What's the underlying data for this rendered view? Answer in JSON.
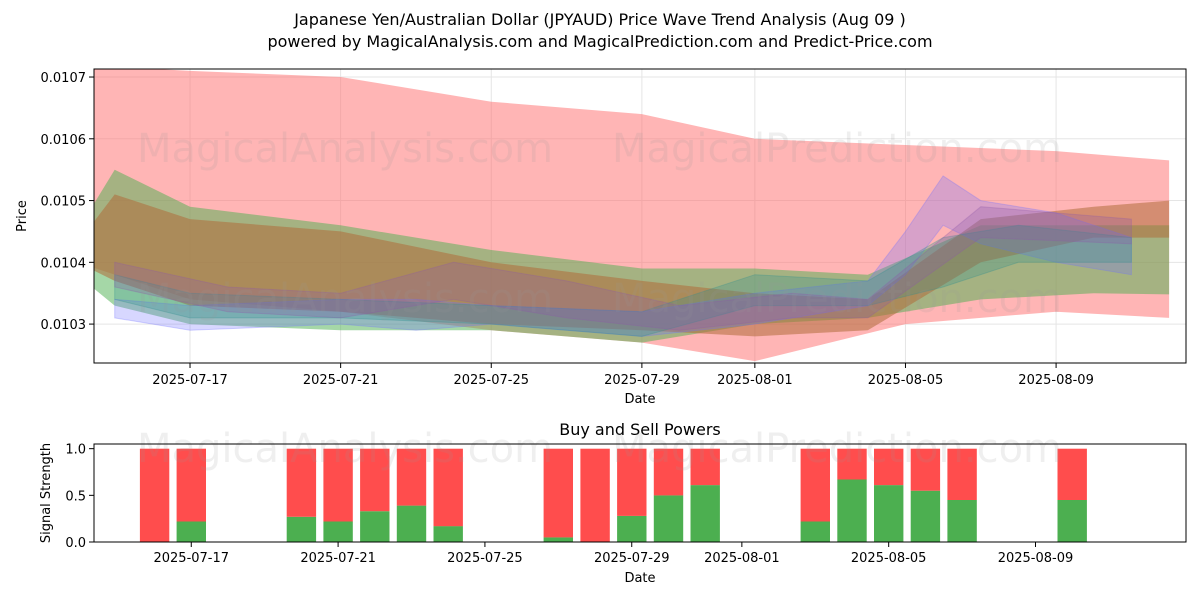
{
  "title_line1": "Japanese Yen/Australian Dollar (JPYAUD) Price Wave Trend Analysis (Aug 09 )",
  "title_line2": "powered by MagicalAnalysis.com and MagicalPrediction.com and Predict-Price.com",
  "watermark_1": "MagicalAnalysis.com",
  "watermark_2": "MagicalPrediction.com",
  "colors": {
    "red_band": "#ff6b6b",
    "green_band": "#4caf50",
    "brown_band": "#b06b3a",
    "blue_wave": "#6f6fff",
    "teal_wave": "#2f8f8f",
    "purple_wave": "#8e5aa8",
    "buy": "#4caf50",
    "sell": "#ff4d4d"
  },
  "chart_data": [
    {
      "type": "area",
      "xlabel": "Date",
      "ylabel": "Price",
      "x_ticks": [
        "2025-07-17",
        "2025-07-21",
        "2025-07-25",
        "2025-07-29",
        "2025-08-01",
        "2025-08-05",
        "2025-08-09"
      ],
      "y_ticks": [
        "0.0103",
        "0.0104",
        "0.0105",
        "0.0106",
        "0.0107"
      ],
      "xlim": [
        "2025-07-14",
        "2025-08-12"
      ],
      "ylim": [
        0.010237,
        0.010713
      ],
      "grid": true,
      "bands": [
        {
          "color": "red",
          "x": [
            "2025-07-14",
            "2025-07-17",
            "2025-07-21",
            "2025-07-25",
            "2025-07-29",
            "2025-08-01",
            "2025-08-05",
            "2025-08-09",
            "2025-08-12"
          ],
          "upper": [
            0.01072,
            0.01071,
            0.0107,
            0.01066,
            0.01064,
            0.0106,
            0.01059,
            0.01058,
            0.010565
          ],
          "lower": [
            0.0104,
            0.01034,
            0.01032,
            0.01029,
            0.01027,
            0.01024,
            0.0103,
            0.01032,
            0.01031
          ]
        },
        {
          "color": "green",
          "x": [
            "2025-07-14",
            "2025-07-15",
            "2025-07-17",
            "2025-07-21",
            "2025-07-25",
            "2025-07-29",
            "2025-08-01",
            "2025-08-04",
            "2025-08-07",
            "2025-08-10",
            "2025-08-12"
          ],
          "upper": [
            0.01045,
            0.01055,
            0.01049,
            0.01046,
            0.01042,
            0.01039,
            0.01039,
            0.01038,
            0.01046,
            0.01046,
            0.01046
          ],
          "lower": [
            0.01038,
            0.01033,
            0.0103,
            0.01029,
            0.01029,
            0.01027,
            0.0103,
            0.01031,
            0.01034,
            0.01035,
            0.010348
          ]
        },
        {
          "color": "brown",
          "x": [
            "2025-07-14",
            "2025-07-15",
            "2025-07-17",
            "2025-07-21",
            "2025-07-25",
            "2025-07-29",
            "2025-08-01",
            "2025-08-04",
            "2025-08-07",
            "2025-08-10",
            "2025-08-12"
          ],
          "upper": [
            0.01043,
            0.01051,
            0.01047,
            0.01045,
            0.0104,
            0.01037,
            0.01035,
            0.01034,
            0.01047,
            0.01049,
            0.0105
          ],
          "lower": [
            0.0104,
            0.01037,
            0.01033,
            0.01032,
            0.0103,
            0.01029,
            0.01028,
            0.01029,
            0.0104,
            0.01044,
            0.01044
          ]
        }
      ],
      "waves": [
        {
          "color": "blue",
          "x": [
            "2025-07-15",
            "2025-07-17",
            "2025-07-21",
            "2025-07-23",
            "2025-07-25",
            "2025-07-29",
            "2025-08-01",
            "2025-08-04",
            "2025-08-05",
            "2025-08-06",
            "2025-08-07",
            "2025-08-09",
            "2025-08-11"
          ],
          "upper": [
            0.01034,
            0.01033,
            0.01034,
            0.01034,
            0.01033,
            0.01032,
            0.01035,
            0.01037,
            0.01045,
            0.01054,
            0.0105,
            0.01048,
            0.01044
          ],
          "lower": [
            0.01031,
            0.01029,
            0.0103,
            0.01029,
            0.0103,
            0.01028,
            0.0103,
            0.01033,
            0.01038,
            0.01046,
            0.01043,
            0.0104,
            0.01038
          ]
        },
        {
          "color": "teal",
          "x": [
            "2025-07-15",
            "2025-07-17",
            "2025-07-21",
            "2025-07-25",
            "2025-07-29",
            "2025-08-01",
            "2025-08-04",
            "2025-08-06",
            "2025-08-08",
            "2025-08-11"
          ],
          "upper": [
            0.01038,
            0.01035,
            0.01034,
            0.01033,
            0.01032,
            0.01038,
            0.01037,
            0.01044,
            0.01046,
            0.01044
          ],
          "lower": [
            0.01034,
            0.01031,
            0.01031,
            0.0103,
            0.01028,
            0.01033,
            0.01033,
            0.01036,
            0.0104,
            0.0104
          ]
        },
        {
          "color": "purple",
          "x": [
            "2025-07-15",
            "2025-07-18",
            "2025-07-21",
            "2025-07-24",
            "2025-07-27",
            "2025-07-30",
            "2025-08-02",
            "2025-08-04",
            "2025-08-07",
            "2025-08-11"
          ],
          "upper": [
            0.0104,
            0.01036,
            0.01035,
            0.0104,
            0.01037,
            0.01033,
            0.01035,
            0.01034,
            0.01049,
            0.01047
          ],
          "lower": [
            0.01036,
            0.01032,
            0.01031,
            0.01034,
            0.01031,
            0.01029,
            0.01031,
            0.01031,
            0.01044,
            0.01043
          ]
        }
      ]
    },
    {
      "type": "bar",
      "title": "Buy and Sell Powers",
      "xlabel": "Date",
      "ylabel": "Signal Strength",
      "x_ticks": [
        "2025-07-17",
        "2025-07-21",
        "2025-07-25",
        "2025-07-29",
        "2025-08-01",
        "2025-08-05",
        "2025-08-09"
      ],
      "y_ticks": [
        "0.0",
        "0.5",
        "1.0"
      ],
      "xlim": [
        "2025-07-14",
        "2025-08-12"
      ],
      "ylim": [
        0,
        1.05
      ],
      "dates": [
        "2025-07-16",
        "2025-07-17",
        "2025-07-20",
        "2025-07-21",
        "2025-07-22",
        "2025-07-23",
        "2025-07-24",
        "2025-07-27",
        "2025-07-28",
        "2025-07-29",
        "2025-07-30",
        "2025-07-31",
        "2025-08-03",
        "2025-08-04",
        "2025-08-05",
        "2025-08-06",
        "2025-08-07",
        "2025-08-10"
      ],
      "buy": [
        0.0,
        0.22,
        0.27,
        0.22,
        0.33,
        0.39,
        0.17,
        0.05,
        0.0,
        0.28,
        0.5,
        0.61,
        0.22,
        0.67,
        0.61,
        0.55,
        0.45,
        0.45
      ],
      "sell": [
        1.0,
        0.78,
        0.73,
        0.78,
        0.67,
        0.61,
        0.83,
        0.95,
        1.0,
        0.72,
        0.5,
        0.39,
        0.78,
        0.33,
        0.39,
        0.45,
        0.55,
        0.55
      ]
    }
  ]
}
